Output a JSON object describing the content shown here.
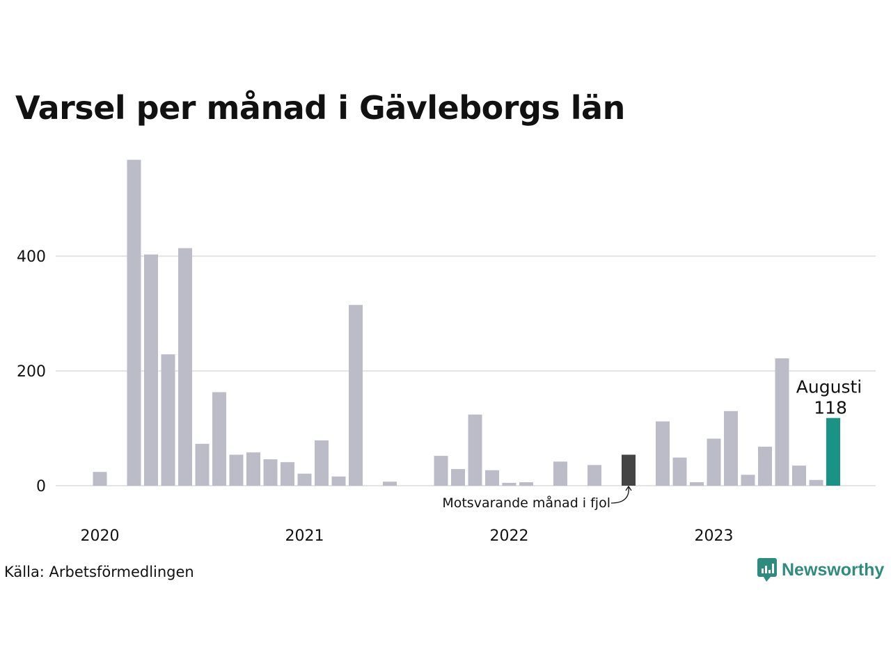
{
  "title": "Varsel per månad i Gävleborgs län",
  "source": "Källa: Arbetsförmedlingen",
  "brand": "Newsworthy",
  "colors": {
    "bar": "#bcbbc8",
    "comparison": "#444444",
    "highlight": "#1a9385",
    "grid": "#e3e3e3",
    "brand": "#2f8b7e"
  },
  "chart_data": {
    "type": "bar",
    "ylim": [
      0,
      570
    ],
    "yticks": [
      0,
      200,
      400
    ],
    "grid": true,
    "xtick_labels": [
      {
        "label": "2020",
        "index": 0
      },
      {
        "label": "2021",
        "index": 12
      },
      {
        "label": "2022",
        "index": 24
      },
      {
        "label": "2023",
        "index": 36
      }
    ],
    "values": [
      24,
      0,
      568,
      403,
      229,
      414,
      73,
      163,
      54,
      58,
      46,
      41,
      21,
      79,
      16,
      315,
      0,
      7,
      0,
      0,
      52,
      29,
      124,
      27,
      5,
      6,
      0,
      42,
      0,
      36,
      0,
      54,
      0,
      112,
      49,
      6,
      82,
      130,
      19,
      68,
      222,
      35,
      10,
      118
    ],
    "comparison_index": 31,
    "highlight_index": 43,
    "highlight_label": "Augusti",
    "highlight_value_label": "118",
    "comparison_annotation": "Motsvarande månad i fjol"
  }
}
